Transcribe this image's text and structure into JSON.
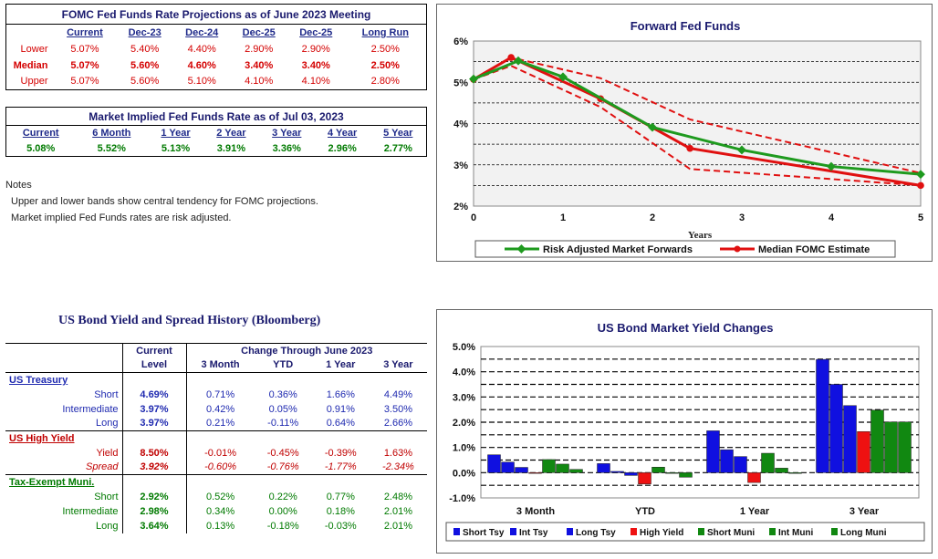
{
  "fomc": {
    "title": "FOMC Fed Funds Rate Projections as of June 2023 Meeting",
    "headers": [
      "Current",
      "Dec-23",
      "Dec-24",
      "Dec-25",
      "Dec-25",
      "Long Run"
    ],
    "rows": [
      {
        "label": "Lower",
        "values": [
          "5.07%",
          "5.40%",
          "4.40%",
          "2.90%",
          "2.90%",
          "2.50%"
        ]
      },
      {
        "label": "Median",
        "values": [
          "5.07%",
          "5.60%",
          "4.60%",
          "3.40%",
          "3.40%",
          "2.50%"
        ]
      },
      {
        "label": "Upper",
        "values": [
          "5.07%",
          "5.60%",
          "5.10%",
          "4.10%",
          "4.10%",
          "2.80%"
        ]
      }
    ]
  },
  "market": {
    "title": "Market Implied Fed Funds Rate as of Jul 03, 2023",
    "headers": [
      "Current",
      "6 Month",
      "1 Year",
      "2 Year",
      "3 Year",
      "4 Year",
      "5 Year"
    ],
    "values": [
      "5.08%",
      "5.52%",
      "5.13%",
      "3.91%",
      "3.36%",
      "2.96%",
      "2.77%"
    ]
  },
  "notes": {
    "title": "Notes",
    "line1": "Upper and lower bands show central tendency for FOMC projections.",
    "line2": "Market implied Fed Funds rates are risk adjusted."
  },
  "bond": {
    "title": "US Bond Yield and Spread History (Bloomberg)",
    "h_current": "Current",
    "h_level": "Level",
    "h_change": "Change Through June 2023",
    "cols": [
      "3 Month",
      "YTD",
      "1 Year",
      "3 Year"
    ],
    "treasury": {
      "section": "US Treasury",
      "rows": [
        {
          "label": "Short",
          "cur": "4.69%",
          "vals": [
            "0.71%",
            "0.36%",
            "1.66%",
            "4.49%"
          ]
        },
        {
          "label": "Intermediate",
          "cur": "3.97%",
          "vals": [
            "0.42%",
            "0.05%",
            "0.91%",
            "3.50%"
          ]
        },
        {
          "label": "Long",
          "cur": "3.97%",
          "vals": [
            "0.21%",
            "-0.11%",
            "0.64%",
            "2.66%"
          ]
        }
      ]
    },
    "highyield": {
      "section": "US High Yield",
      "rows": [
        {
          "label": "Yield",
          "cur": "8.50%",
          "vals": [
            "-0.01%",
            "-0.45%",
            "-0.39%",
            "1.63%"
          ]
        },
        {
          "label": "Spread",
          "cur": "3.92%",
          "vals": [
            "-0.60%",
            "-0.76%",
            "-1.77%",
            "-2.34%"
          ]
        }
      ]
    },
    "muni": {
      "section": "Tax-Exempt Muni.",
      "rows": [
        {
          "label": "Short",
          "cur": "2.92%",
          "vals": [
            "0.52%",
            "0.22%",
            "0.77%",
            "2.48%"
          ]
        },
        {
          "label": "Intermediate",
          "cur": "2.98%",
          "vals": [
            "0.34%",
            "0.00%",
            "0.18%",
            "2.01%"
          ]
        },
        {
          "label": "Long",
          "cur": "3.64%",
          "vals": [
            "0.13%",
            "-0.18%",
            "-0.03%",
            "2.01%"
          ]
        }
      ]
    }
  },
  "chart_data": [
    {
      "type": "line",
      "title": "Forward Fed Funds",
      "xlabel": "Years",
      "ylabel": "",
      "xlim": [
        0,
        5
      ],
      "ylim": [
        2,
        6
      ],
      "xticks": [
        "0",
        "1",
        "2",
        "3",
        "4",
        "5"
      ],
      "yticks": [
        "2%",
        "3%",
        "4%",
        "5%",
        "6%"
      ],
      "legend_position": "bottom",
      "series": [
        {
          "name": "Risk Adjusted Market Forwards",
          "color": "#1e9a1e",
          "marker": "diamond",
          "x": [
            0,
            0.5,
            1,
            2,
            3,
            4,
            5
          ],
          "y": [
            5.08,
            5.52,
            5.13,
            3.91,
            3.36,
            2.96,
            2.77
          ]
        },
        {
          "name": "Median FOMC Estimate",
          "color": "#e01010",
          "marker": "circle",
          "x": [
            0,
            0.42,
            1.42,
            2.42,
            5
          ],
          "y": [
            5.07,
            5.6,
            4.6,
            3.4,
            2.5
          ]
        },
        {
          "name": "",
          "color": "#e01010",
          "dashed": true,
          "x": [
            0,
            0.42,
            1.42,
            2.42,
            5
          ],
          "y": [
            5.07,
            5.6,
            5.1,
            4.1,
            2.8
          ]
        },
        {
          "name": "",
          "color": "#e01010",
          "dashed": true,
          "x": [
            0,
            0.42,
            1.42,
            2.42,
            5
          ],
          "y": [
            5.07,
            5.4,
            4.4,
            2.9,
            2.5
          ]
        }
      ]
    },
    {
      "type": "bar",
      "title": "US Bond Market Yield Changes",
      "categories": [
        "3 Month",
        "YTD",
        "1 Year",
        "3 Year"
      ],
      "ylim": [
        -1.0,
        5.0
      ],
      "yticks": [
        "-1.0%",
        "0.0%",
        "1.0%",
        "2.0%",
        "3.0%",
        "4.0%",
        "5.0%"
      ],
      "legend_position": "bottom",
      "series": [
        {
          "name": "Short Tsy",
          "color": "#1010e0",
          "values": [
            0.71,
            0.36,
            1.66,
            4.49
          ]
        },
        {
          "name": "Int Tsy",
          "color": "#1010e0",
          "values": [
            0.42,
            0.05,
            0.91,
            3.5
          ]
        },
        {
          "name": "Long Tsy",
          "color": "#1010e0",
          "values": [
            0.21,
            -0.11,
            0.64,
            2.66
          ]
        },
        {
          "name": "High Yield",
          "color": "#ee1111",
          "values": [
            -0.01,
            -0.45,
            -0.39,
            1.63
          ]
        },
        {
          "name": "Short Muni",
          "color": "#118811",
          "values": [
            0.52,
            0.22,
            0.77,
            2.48
          ]
        },
        {
          "name": "Int Muni",
          "color": "#118811",
          "values": [
            0.34,
            0.0,
            0.18,
            2.01
          ]
        },
        {
          "name": "Long Muni",
          "color": "#118811",
          "values": [
            0.13,
            -0.18,
            -0.03,
            2.01
          ]
        }
      ]
    }
  ]
}
